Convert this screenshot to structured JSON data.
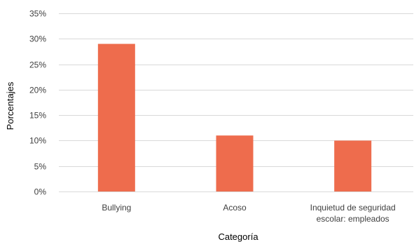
{
  "chart_data": {
    "type": "bar",
    "categories": [
      [
        "Bullying"
      ],
      [
        "Acoso"
      ],
      [
        "Inquietud de seguridad",
        "escolar: empleados"
      ]
    ],
    "values": [
      29,
      11,
      10
    ],
    "value_unit": "%",
    "ylim": [
      0,
      35
    ],
    "yticks": [
      "0%",
      "5%",
      "10%",
      "15%",
      "20%",
      "25%",
      "30%",
      "35%"
    ],
    "ytick_values": [
      0,
      5,
      10,
      15,
      20,
      25,
      30,
      35
    ],
    "xlabel": "Categoría",
    "ylabel": "Porcentajes",
    "grid": true,
    "legend": "none",
    "bar_color": "#ee6c4d"
  }
}
